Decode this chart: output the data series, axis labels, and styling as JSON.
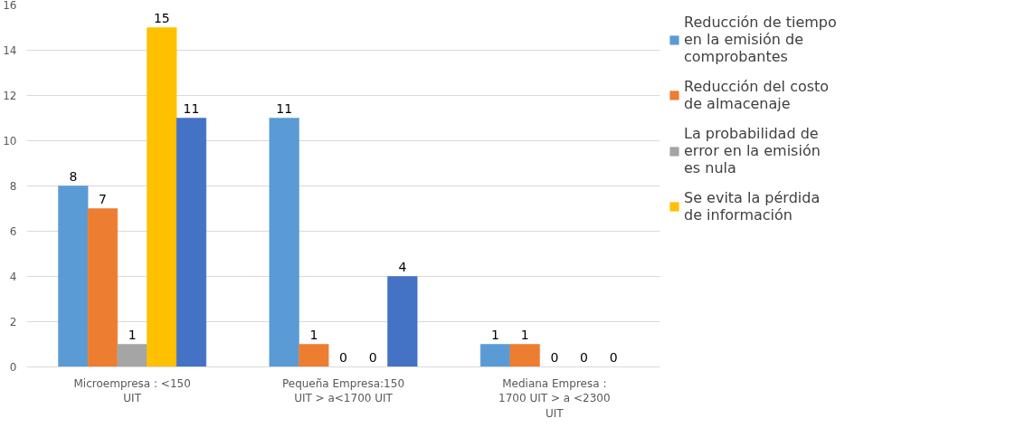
{
  "chart_data": {
    "type": "bar",
    "categories": [
      "Microempresa : <150 UIT",
      "Pequeña Empresa:150 UIT > a<1700 UIT",
      "Mediana Empresa : 1700 UIT > a <2300 UIT"
    ],
    "series": [
      {
        "name": "Reducción de tiempo en la emisión de comprobantes",
        "color": "#5b9bd5",
        "values": [
          8,
          11,
          1
        ]
      },
      {
        "name": "Reducción del costo de almacenaje",
        "color": "#ed7d31",
        "values": [
          7,
          1,
          1
        ]
      },
      {
        "name": "La probabilidad de error en la emisión es nula",
        "color": "#a5a5a5",
        "values": [
          1,
          0,
          0
        ]
      },
      {
        "name": "Se evita la pérdida de información",
        "color": "#ffc000",
        "values": [
          15,
          0,
          0
        ]
      },
      {
        "color": "#4472c4",
        "values": [
          11,
          4,
          0
        ]
      }
    ],
    "ylim": [
      0,
      16
    ],
    "yticks": [
      0,
      2,
      4,
      6,
      8,
      10,
      12,
      14,
      16
    ],
    "grid": "y",
    "legend": "right",
    "data_labels": true
  }
}
